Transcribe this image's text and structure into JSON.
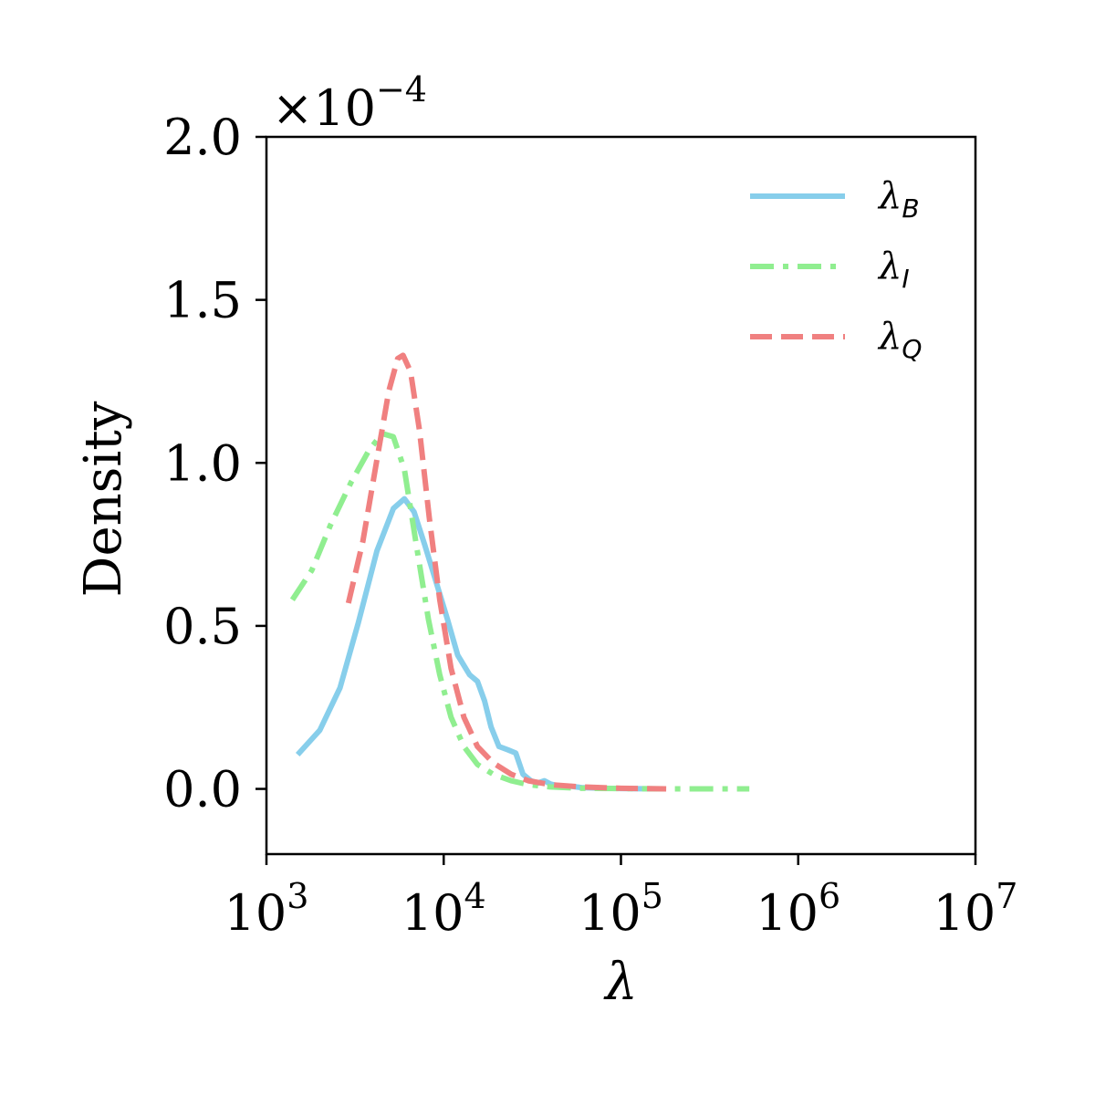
{
  "chart_data": {
    "type": "line",
    "title": "",
    "xlabel": "λ",
    "ylabel": "Density",
    "x_scale": "log",
    "xlim": [
      1000,
      10000000
    ],
    "ylim": [
      -2e-05,
      0.0002
    ],
    "y_offset_text": "×10",
    "y_offset_exponent": "−4",
    "x_ticks": [
      {
        "value": 1000,
        "base": "10",
        "exp": "3"
      },
      {
        "value": 10000,
        "base": "10",
        "exp": "4"
      },
      {
        "value": 100000,
        "base": "10",
        "exp": "5"
      },
      {
        "value": 1000000,
        "base": "10",
        "exp": "6"
      },
      {
        "value": 10000000,
        "base": "10",
        "exp": "7"
      }
    ],
    "y_ticks": [
      {
        "value": 0.0,
        "label": "0.0"
      },
      {
        "value": 5e-05,
        "label": "0.5"
      },
      {
        "value": 0.0001,
        "label": "1.0"
      },
      {
        "value": 0.00015,
        "label": "1.5"
      },
      {
        "value": 0.0002,
        "label": "2.0"
      }
    ],
    "grid": false,
    "legend_position": "top-right",
    "series": [
      {
        "name": "λ",
        "subscript": "B",
        "color": "#87ceeb",
        "dash": "solid",
        "points": [
          [
            1500,
            1.05e-05
          ],
          [
            2000,
            1.8e-05
          ],
          [
            2600,
            3.1e-05
          ],
          [
            3300,
            5.1e-05
          ],
          [
            4200,
            7.3e-05
          ],
          [
            5200,
            8.6e-05
          ],
          [
            6000,
            8.9e-05
          ],
          [
            6800,
            8.5e-05
          ],
          [
            7800,
            7.5e-05
          ],
          [
            9000,
            6.4e-05
          ],
          [
            10500,
            5.2e-05
          ],
          [
            12000,
            4.1e-05
          ],
          [
            14000,
            3.5e-05
          ],
          [
            15500,
            3.3e-05
          ],
          [
            17000,
            2.7e-05
          ],
          [
            18500,
            1.9e-05
          ],
          [
            20500,
            1.3e-05
          ],
          [
            23000,
            1.2e-05
          ],
          [
            25500,
            1.1e-05
          ],
          [
            28000,
            4.5e-06
          ],
          [
            31000,
            2.5e-06
          ],
          [
            34000,
            1.8e-06
          ],
          [
            37000,
            2.5e-06
          ],
          [
            40000,
            1.5e-06
          ],
          [
            45000,
            8e-07
          ],
          [
            52000,
            8e-07
          ],
          [
            60000,
            4e-07
          ],
          [
            80000,
            2e-07
          ],
          [
            110000,
            1e-07
          ],
          [
            160000,
            0.0
          ]
        ]
      },
      {
        "name": "λ",
        "subscript": "I",
        "color": "#90ee90",
        "dash": "dashdot",
        "points": [
          [
            1400,
            5.8e-05
          ],
          [
            1800,
            6.7e-05
          ],
          [
            2300,
            8.1e-05
          ],
          [
            3000,
            9.4e-05
          ],
          [
            3800,
            0.000104
          ],
          [
            4500,
            0.000109
          ],
          [
            5200,
            0.000108
          ],
          [
            6000,
            9.8e-05
          ],
          [
            7000,
            7.5e-05
          ],
          [
            8200,
            5.2e-05
          ],
          [
            9500,
            3.5e-05
          ],
          [
            11000,
            2.2e-05
          ],
          [
            13000,
            1.3e-05
          ],
          [
            15500,
            7.5e-06
          ],
          [
            19000,
            4.5e-06
          ],
          [
            24000,
            2.5e-06
          ],
          [
            30000,
            1.3e-06
          ],
          [
            40000,
            6e-07
          ],
          [
            60000,
            2e-07
          ],
          [
            100000,
            1e-07
          ],
          [
            200000,
            0.0
          ],
          [
            530000,
            0.0
          ]
        ]
      },
      {
        "name": "λ",
        "subscript": "Q",
        "color": "#f08080",
        "dash": "dashed",
        "points": [
          [
            2900,
            5.7e-05
          ],
          [
            3500,
            7.6e-05
          ],
          [
            4200,
            0.000101
          ],
          [
            4900,
            0.000122
          ],
          [
            5500,
            0.000132
          ],
          [
            5900,
            0.000133
          ],
          [
            6500,
            0.000128
          ],
          [
            7300,
            0.00011
          ],
          [
            8300,
            8.3e-05
          ],
          [
            9500,
            5.8e-05
          ],
          [
            11000,
            3.7e-05
          ],
          [
            13000,
            2.2e-05
          ],
          [
            15500,
            1.3e-05
          ],
          [
            19000,
            8e-06
          ],
          [
            24000,
            4.5e-06
          ],
          [
            30000,
            2.5e-06
          ],
          [
            40000,
            1.3e-06
          ],
          [
            60000,
            6e-07
          ],
          [
            100000,
            2e-07
          ],
          [
            180000,
            0.0
          ]
        ]
      }
    ]
  }
}
